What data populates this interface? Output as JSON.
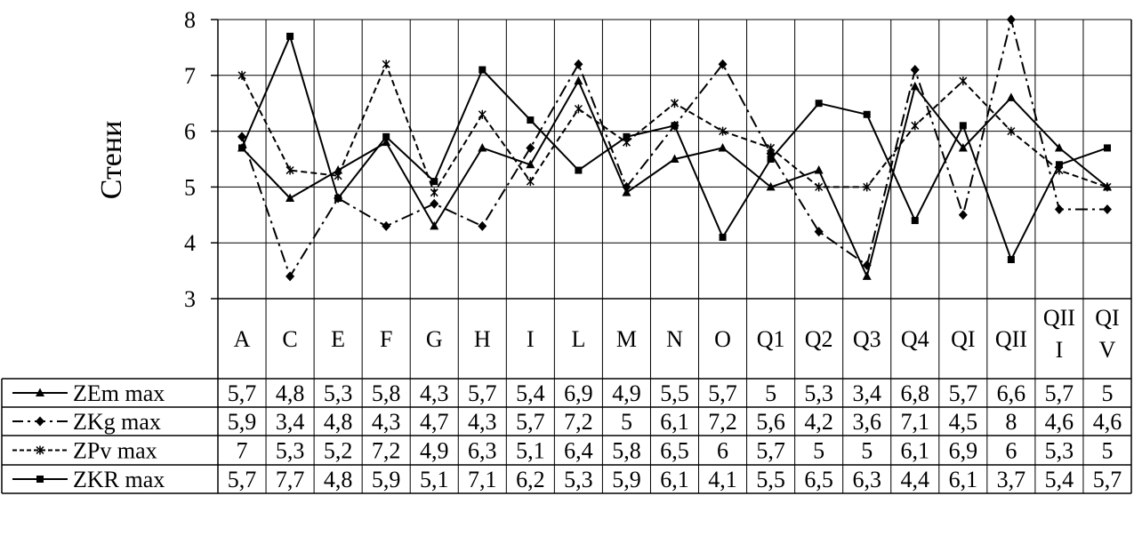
{
  "chart_data": {
    "type": "line",
    "title": "",
    "ylabel": "Стени",
    "xlabel": "",
    "ylim": [
      3,
      8
    ],
    "yticks": [
      "3",
      "4",
      "5",
      "6",
      "7",
      "8"
    ],
    "grid": true,
    "legend": "table-left",
    "categories": [
      "A",
      "C",
      "E",
      "F",
      "G",
      "H",
      "I",
      "L",
      "M",
      "N",
      "O",
      "Q1",
      "Q2",
      "Q3",
      "Q4",
      "QI",
      "QII",
      "QIII",
      "QIV"
    ],
    "category_display": [
      [
        "A"
      ],
      [
        "C"
      ],
      [
        "E"
      ],
      [
        "F"
      ],
      [
        "G"
      ],
      [
        "H"
      ],
      [
        "I"
      ],
      [
        "L"
      ],
      [
        "M"
      ],
      [
        "N"
      ],
      [
        "O"
      ],
      [
        "Q1"
      ],
      [
        "Q2"
      ],
      [
        "Q3"
      ],
      [
        "Q4"
      ],
      [
        "QI"
      ],
      [
        "QII"
      ],
      [
        "QII",
        "I"
      ],
      [
        "QI",
        "V"
      ]
    ],
    "series": [
      {
        "name": "ZEm max",
        "marker": "triangle",
        "dash": "solid",
        "values": [
          5.7,
          4.8,
          5.3,
          5.8,
          4.3,
          5.7,
          5.4,
          6.9,
          4.9,
          5.5,
          5.7,
          5,
          5.3,
          3.4,
          6.8,
          5.7,
          6.6,
          5.7,
          5
        ],
        "labels": [
          "5,7",
          "4,8",
          "5,3",
          "5,8",
          "4,3",
          "5,7",
          "5,4",
          "6,9",
          "4,9",
          "5,5",
          "5,7",
          "5",
          "5,3",
          "3,4",
          "6,8",
          "5,7",
          "6,6",
          "5,7",
          "5"
        ]
      },
      {
        "name": "ZKg max",
        "marker": "diamond",
        "dash": "dashdot",
        "values": [
          5.9,
          3.4,
          4.8,
          4.3,
          4.7,
          4.3,
          5.7,
          7.2,
          5,
          6.1,
          7.2,
          5.6,
          4.2,
          3.6,
          7.1,
          4.5,
          8,
          4.6,
          4.6
        ],
        "labels": [
          "5,9",
          "3,4",
          "4,8",
          "4,3",
          "4,7",
          "4,3",
          "5,7",
          "7,2",
          "5",
          "6,1",
          "7,2",
          "5,6",
          "4,2",
          "3,6",
          "7,1",
          "4,5",
          "8",
          "4,6",
          "4,6"
        ]
      },
      {
        "name": "ZPv max",
        "marker": "star",
        "dash": "dashed",
        "values": [
          7,
          5.3,
          5.2,
          7.2,
          4.9,
          6.3,
          5.1,
          6.4,
          5.8,
          6.5,
          6,
          5.7,
          5,
          5,
          6.1,
          6.9,
          6,
          5.3,
          5
        ],
        "labels": [
          "7",
          "5,3",
          "5,2",
          "7,2",
          "4,9",
          "6,3",
          "5,1",
          "6,4",
          "5,8",
          "6,5",
          "6",
          "5,7",
          "5",
          "5",
          "6,1",
          "6,9",
          "6",
          "5,3",
          "5"
        ]
      },
      {
        "name": "ZKR max",
        "marker": "square",
        "dash": "solid",
        "values": [
          5.7,
          7.7,
          4.8,
          5.9,
          5.1,
          7.1,
          6.2,
          5.3,
          5.9,
          6.1,
          4.1,
          5.5,
          6.5,
          6.3,
          4.4,
          6.1,
          3.7,
          5.4,
          5.7
        ],
        "labels": [
          "5,7",
          "7,7",
          "4,8",
          "5,9",
          "5,1",
          "7,1",
          "6,2",
          "5,3",
          "5,9",
          "6,1",
          "4,1",
          "5,5",
          "6,5",
          "6,3",
          "4,4",
          "6,1",
          "3,7",
          "5,4",
          "5,7"
        ]
      }
    ]
  }
}
